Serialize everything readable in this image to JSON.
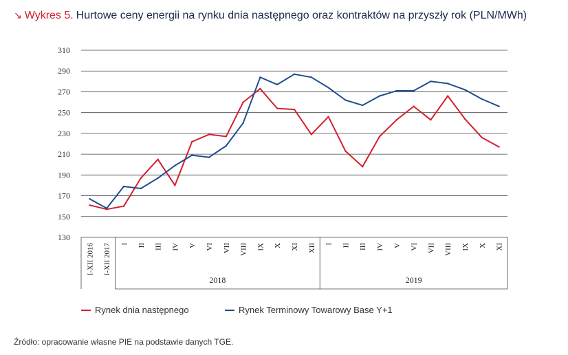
{
  "title": {
    "arrow": "↘",
    "label": "Wykres 5.",
    "text": "Hurtowe ceny energii na rynku dnia następnego oraz kontraktów na przyszły rok (PLN/MWh)"
  },
  "source": "Źródło: opracowanie własne PIE na podstawie danych TGE.",
  "colors": {
    "series1": "#d2202f",
    "series2": "#1f4e8c",
    "grid": "#444444"
  },
  "chart_data": {
    "type": "line",
    "title": "Hurtowe ceny energii na rynku dnia następnego oraz kontraktów na przyszły rok (PLN/MWh)",
    "xlabel": "",
    "ylabel": "",
    "ylim": [
      130,
      310
    ],
    "yticks": [
      130,
      150,
      170,
      190,
      210,
      230,
      250,
      270,
      290,
      310
    ],
    "grid": true,
    "legend_position": "bottom",
    "categories": [
      "I-XII 2016",
      "I-XII 2017",
      "I",
      "II",
      "III",
      "IV",
      "V",
      "VI",
      "VII",
      "VIII",
      "IX",
      "X",
      "XI",
      "XII",
      "I",
      "II",
      "III",
      "IV",
      "V",
      "VI",
      "VII",
      "VIII",
      "IX",
      "X",
      "XI"
    ],
    "groups": [
      {
        "label": "2018",
        "from": 2,
        "to": 13
      },
      {
        "label": "2019",
        "from": 14,
        "to": 24
      }
    ],
    "series": [
      {
        "name": "Rynek dnia następnego",
        "color": "#d2202f",
        "values": [
          161,
          157,
          160,
          187,
          205,
          180,
          222,
          229,
          227,
          260,
          273,
          254,
          253,
          229,
          246,
          213,
          198,
          227,
          243,
          256,
          243,
          266,
          244,
          226,
          217
        ]
      },
      {
        "name": "Rynek Terminowy Towarowy Base Y+1",
        "color": "#1f4e8c",
        "values": [
          167,
          158,
          179,
          177,
          187,
          199,
          209,
          207,
          218,
          240,
          284,
          277,
          287,
          284,
          274,
          262,
          257,
          266,
          271,
          271,
          280,
          278,
          272,
          263,
          256
        ]
      }
    ]
  }
}
